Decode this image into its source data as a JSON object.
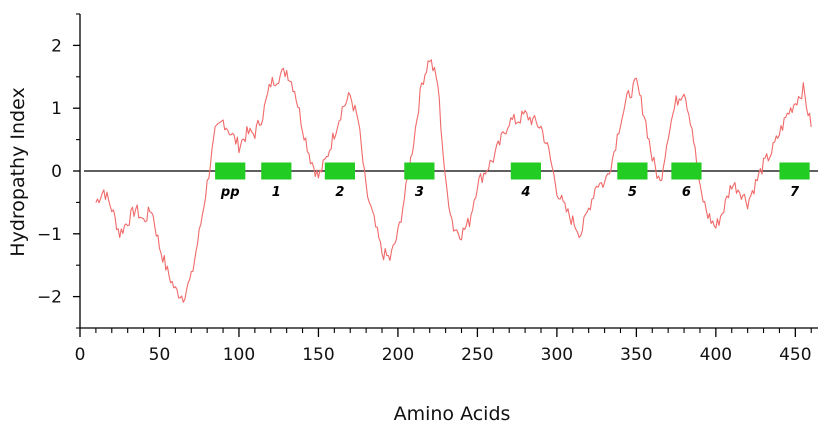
{
  "chart_data": {
    "type": "line",
    "xlabel": "Amino Acids",
    "ylabel": "Hydropathy Index",
    "xlim": [
      0,
      463
    ],
    "ylim": [
      -2.5,
      2.5
    ],
    "x_ticks": [
      0,
      50,
      100,
      150,
      200,
      250,
      300,
      350,
      400,
      450
    ],
    "x_tick_labels": [
      "0",
      "50",
      "100",
      "150",
      "200",
      "250",
      "300",
      "350",
      "400",
      "450"
    ],
    "y_ticks": [
      -2,
      -1,
      0,
      1,
      2
    ],
    "y_tick_labels": [
      "−2",
      "−1",
      "0",
      "1",
      "2"
    ],
    "grid": false,
    "baseline_y": 0,
    "colors": {
      "line": "#f06a6a",
      "segment": "#22cc22",
      "axis": "#000000"
    },
    "series": [
      {
        "color": "#f06a6a",
        "x": [
          10,
          15,
          20,
          25,
          30,
          35,
          40,
          45,
          50,
          55,
          60,
          65,
          70,
          75,
          80,
          85,
          90,
          95,
          100,
          105,
          110,
          115,
          120,
          125,
          130,
          135,
          140,
          145,
          150,
          155,
          160,
          165,
          170,
          175,
          180,
          185,
          190,
          195,
          200,
          205,
          210,
          215,
          220,
          225,
          230,
          235,
          240,
          245,
          250,
          255,
          260,
          265,
          270,
          275,
          280,
          285,
          290,
          295,
          300,
          305,
          310,
          315,
          320,
          325,
          330,
          335,
          340,
          345,
          350,
          355,
          360,
          365,
          370,
          375,
          380,
          385,
          390,
          395,
          400,
          405,
          410,
          415,
          420,
          425,
          430,
          435,
          440,
          445,
          450,
          455,
          460
        ],
        "y": [
          -0.5,
          -0.3,
          -0.6,
          -1.0,
          -0.8,
          -0.6,
          -0.8,
          -0.6,
          -1.2,
          -1.6,
          -1.9,
          -2.0,
          -1.7,
          -1.0,
          -0.2,
          0.6,
          0.8,
          0.6,
          0.4,
          0.6,
          0.6,
          0.9,
          1.4,
          1.5,
          1.6,
          1.3,
          0.7,
          0.2,
          -0.1,
          0.2,
          0.6,
          1.0,
          1.2,
          0.8,
          -0.3,
          -0.8,
          -1.3,
          -1.4,
          -1.0,
          -0.3,
          0.5,
          1.4,
          1.8,
          1.4,
          -0.2,
          -0.9,
          -1.0,
          -0.8,
          -0.2,
          0.0,
          0.2,
          0.5,
          0.8,
          0.8,
          0.9,
          0.8,
          0.7,
          0.3,
          -0.3,
          -0.6,
          -0.8,
          -1.0,
          -0.6,
          -0.2,
          -0.2,
          0.2,
          0.8,
          1.2,
          1.4,
          0.9,
          0.2,
          -0.2,
          0.6,
          1.1,
          1.3,
          0.7,
          -0.3,
          -0.7,
          -0.9,
          -0.6,
          -0.2,
          -0.3,
          -0.5,
          -0.2,
          0.1,
          0.3,
          0.6,
          0.9,
          1.1,
          1.3,
          0.7
        ]
      }
    ],
    "segments": [
      {
        "label": "pp",
        "start": 85,
        "end": 104
      },
      {
        "label": "1",
        "start": 114,
        "end": 133
      },
      {
        "label": "2",
        "start": 154,
        "end": 173
      },
      {
        "label": "3",
        "start": 204,
        "end": 223
      },
      {
        "label": "4",
        "start": 271,
        "end": 290
      },
      {
        "label": "5",
        "start": 338,
        "end": 357
      },
      {
        "label": "6",
        "start": 372,
        "end": 391
      },
      {
        "label": "7",
        "start": 440,
        "end": 459
      }
    ]
  }
}
